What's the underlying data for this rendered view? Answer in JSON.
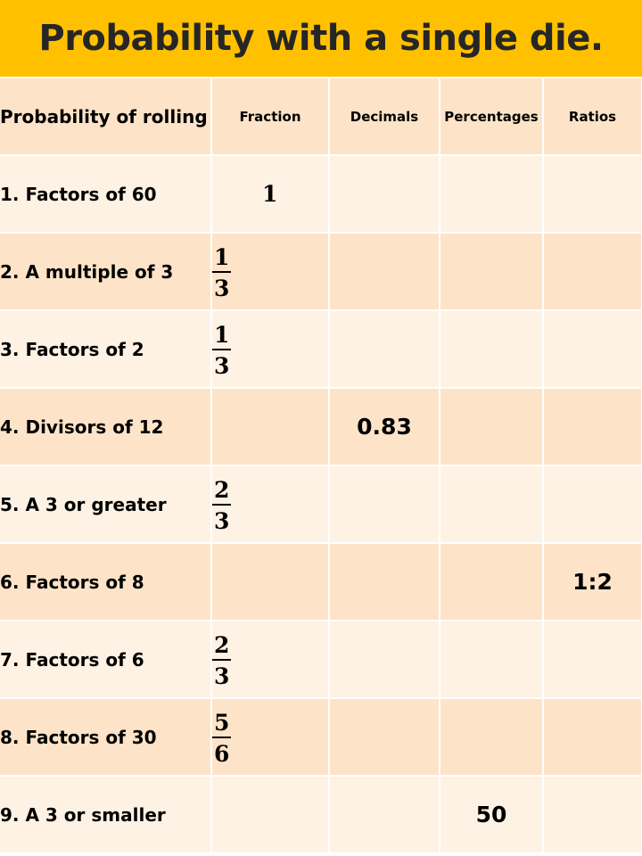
{
  "title": "Probability with a single die.",
  "headers": {
    "event": "Probability of rolling",
    "fraction": "Fraction",
    "decimals": "Decimals",
    "percentages": "Percentages",
    "ratios": "Ratios"
  },
  "rows": [
    {
      "label": "1. Factors of 60",
      "fraction_whole": "1"
    },
    {
      "label": "2. A multiple of 3",
      "fraction_num": "1",
      "fraction_den": "3"
    },
    {
      "label": "3. Factors of 2",
      "fraction_num": "1",
      "fraction_den": "3"
    },
    {
      "label": "4. Divisors of 12",
      "decimal": "0.83"
    },
    {
      "label": "5. A 3 or greater",
      "fraction_num": "2",
      "fraction_den": "3"
    },
    {
      "label": "6. Factors of 8",
      "ratio": "1:2"
    },
    {
      "label": "7. Factors of 6",
      "fraction_num": "2",
      "fraction_den": "3"
    },
    {
      "label": "8. Factors of 30",
      "fraction_num": "5",
      "fraction_den": "6"
    },
    {
      "label": "9. A 3 or smaller",
      "percentage": "50"
    }
  ],
  "colors": {
    "title_bar": "#FFC000",
    "row_dark": "#FDE4C8",
    "row_light": "#FEF2E4"
  }
}
